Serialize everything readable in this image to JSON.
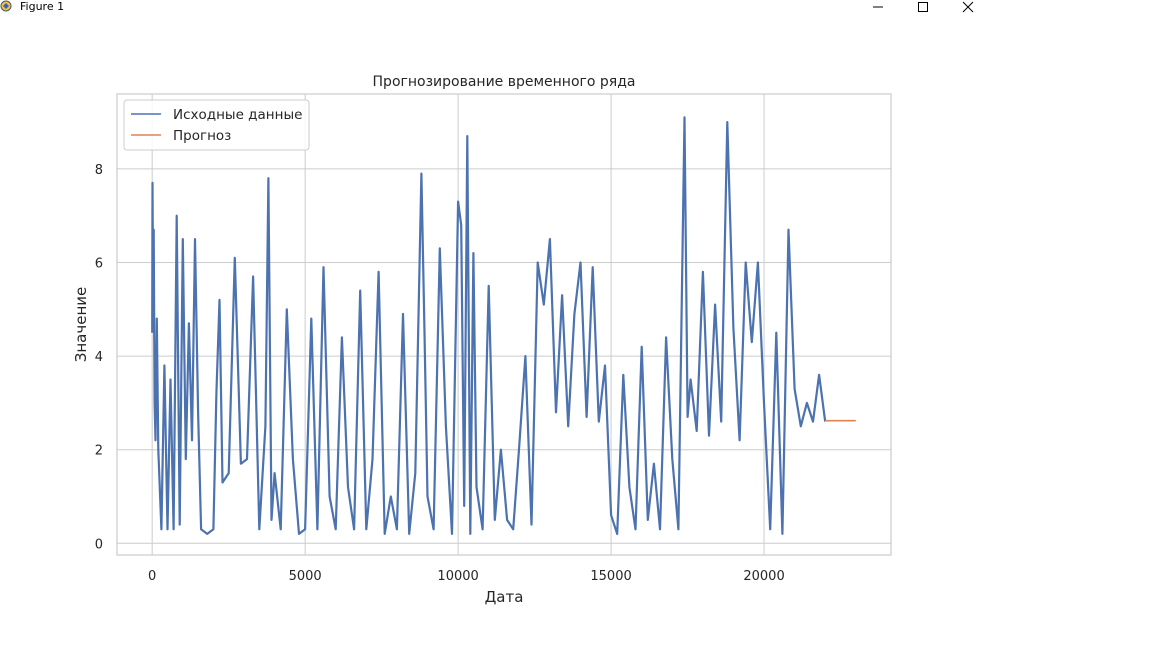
{
  "window": {
    "title": "Figure 1",
    "icons": [
      "figure-app-icon",
      "minimize-icon",
      "maximize-icon",
      "close-icon"
    ]
  },
  "chart_data": {
    "type": "line",
    "title": "Прогнозирование временного ряда",
    "xlabel": "Дата",
    "ylabel": "Значение",
    "xlim": [
      -1150,
      24150
    ],
    "ylim": [
      -0.25,
      9.6
    ],
    "xticks": [
      0,
      5000,
      10000,
      15000,
      20000
    ],
    "xtick_labels": [
      "0",
      "5000",
      "10000",
      "15000",
      "20000"
    ],
    "yticks": [
      0,
      2,
      4,
      6,
      8
    ],
    "ytick_labels": [
      "0",
      "2",
      "4",
      "6",
      "8"
    ],
    "grid": true,
    "legend": "top-left",
    "series": [
      {
        "name": "Исходные данные",
        "color": "#4c72b0",
        "x": [
          0,
          10,
          30,
          50,
          80,
          110,
          150,
          200,
          300,
          400,
          500,
          600,
          700,
          800,
          900,
          1000,
          1100,
          1200,
          1300,
          1400,
          1500,
          1600,
          1800,
          2000,
          2100,
          2200,
          2300,
          2500,
          2700,
          2900,
          3100,
          3300,
          3500,
          3700,
          3800,
          3850,
          3900,
          4000,
          4200,
          4400,
          4600,
          4800,
          5000,
          5200,
          5400,
          5600,
          5800,
          6000,
          6200,
          6400,
          6600,
          6800,
          7000,
          7200,
          7400,
          7600,
          7800,
          8000,
          8200,
          8400,
          8600,
          8800,
          8900,
          9000,
          9200,
          9400,
          9600,
          9800,
          10000,
          10100,
          10200,
          10300,
          10400,
          10500,
          10600,
          10800,
          11000,
          11200,
          11400,
          11600,
          11800,
          12000,
          12200,
          12400,
          12600,
          12800,
          13000,
          13200,
          13400,
          13600,
          13800,
          14000,
          14200,
          14400,
          14600,
          14800,
          15000,
          15200,
          15400,
          15600,
          15800,
          16000,
          16200,
          16400,
          16600,
          16800,
          17000,
          17200,
          17400,
          17500,
          17600,
          17800,
          18000,
          18200,
          18400,
          18600,
          18800,
          19000,
          19200,
          19400,
          19600,
          19800,
          20000,
          20200,
          20400,
          20600,
          20800,
          21000,
          21200,
          21400,
          21600,
          21800,
          22000
        ],
        "y": [
          4.5,
          7.7,
          5.2,
          6.7,
          3.0,
          2.2,
          4.8,
          2.0,
          0.3,
          3.8,
          0.3,
          3.5,
          0.3,
          7.0,
          0.4,
          6.5,
          1.8,
          4.7,
          2.2,
          6.5,
          2.8,
          0.3,
          0.2,
          0.3,
          3.2,
          5.2,
          1.3,
          1.5,
          6.1,
          1.7,
          1.8,
          5.7,
          0.3,
          2.5,
          7.8,
          4.0,
          0.5,
          1.5,
          0.3,
          5.0,
          1.8,
          0.2,
          0.3,
          4.8,
          0.3,
          5.9,
          1.0,
          0.3,
          4.4,
          1.2,
          0.3,
          5.4,
          0.3,
          1.8,
          5.8,
          0.2,
          1.0,
          0.3,
          4.9,
          0.2,
          1.5,
          7.9,
          4.5,
          1.0,
          0.3,
          6.3,
          2.5,
          0.2,
          7.3,
          6.8,
          0.8,
          8.7,
          0.2,
          6.2,
          1.2,
          0.3,
          5.5,
          0.5,
          2.0,
          0.5,
          0.3,
          2.1,
          4.0,
          0.4,
          6.0,
          5.1,
          6.5,
          2.8,
          5.3,
          2.5,
          4.9,
          6.0,
          2.7,
          5.9,
          2.6,
          3.8,
          0.6,
          0.2,
          3.6,
          1.2,
          0.3,
          4.2,
          0.5,
          1.7,
          0.3,
          4.4,
          1.8,
          0.3,
          9.1,
          2.7,
          3.5,
          2.4,
          5.8,
          2.3,
          5.1,
          2.6,
          9.0,
          4.6,
          2.2,
          6.0,
          4.3,
          6.0,
          3.0,
          0.3,
          4.5,
          0.2,
          6.7,
          3.3,
          2.5,
          3.0,
          2.6,
          3.6,
          2.6
        ]
      },
      {
        "name": "Прогноз",
        "color": "#dd8452",
        "x": [
          22000,
          23000
        ],
        "y": [
          2.62,
          2.62
        ]
      }
    ]
  }
}
